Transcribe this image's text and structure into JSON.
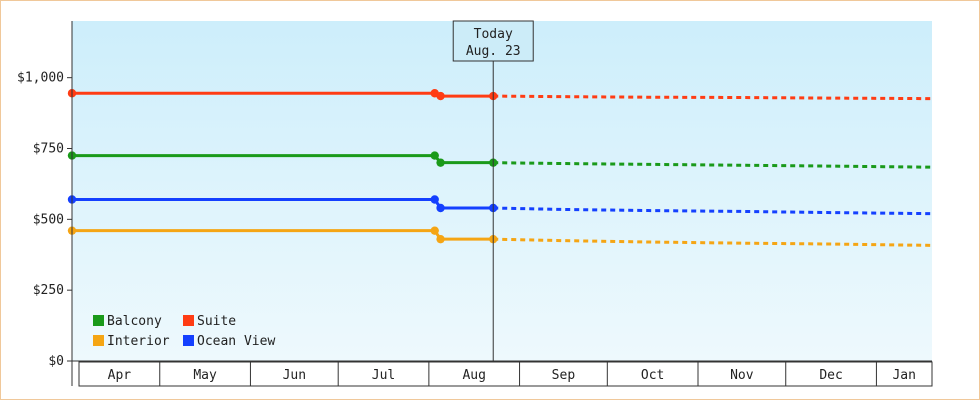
{
  "chart_data": {
    "type": "line",
    "title": "",
    "xlabel": "",
    "ylabel": "",
    "ylim": [
      0,
      1200
    ],
    "xlim": [
      "2023-04-01",
      "2024-01-20"
    ],
    "y_ticks": [
      0,
      250,
      500,
      750,
      1000
    ],
    "y_tick_labels": [
      "$0",
      "$250",
      "$500",
      "$750",
      "$1,000"
    ],
    "x_tick_labels": [
      "Apr",
      "May",
      "Jun",
      "Jul",
      "Aug",
      "Sep",
      "Oct",
      "Nov",
      "Dec",
      "Jan"
    ],
    "month_starts": [
      "2023-04-01",
      "2023-05-01",
      "2023-06-01",
      "2023-07-01",
      "2023-08-01",
      "2023-09-01",
      "2023-10-01",
      "2023-11-01",
      "2023-12-01",
      "2024-01-01"
    ],
    "grid": false,
    "background": "light-blue gradient",
    "today_marker": {
      "date": "2023-08-23",
      "line1": "Today",
      "line2": "Aug. 23"
    },
    "legend": {
      "placement": "bottom-left",
      "entries": [
        {
          "label": "Balcony",
          "color": "#1a9a1a"
        },
        {
          "label": "Suite",
          "color": "#ff3c14"
        },
        {
          "label": "Interior",
          "color": "#f5a514"
        },
        {
          "label": "Ocean View",
          "color": "#1440ff"
        }
      ]
    },
    "series": [
      {
        "name": "Suite",
        "color": "#ff3c14",
        "actual": [
          [
            "2023-04-01",
            945
          ],
          [
            "2023-08-03",
            945
          ],
          [
            "2023-08-05",
            935
          ],
          [
            "2023-08-23",
            935
          ]
        ],
        "projected": [
          [
            "2023-08-23",
            935
          ],
          [
            "2023-09-15",
            933
          ],
          [
            "2023-10-15",
            931
          ],
          [
            "2023-11-15",
            930
          ],
          [
            "2023-12-15",
            928
          ],
          [
            "2024-01-20",
            926
          ]
        ]
      },
      {
        "name": "Balcony",
        "color": "#1a9a1a",
        "actual": [
          [
            "2023-04-01",
            725
          ],
          [
            "2023-08-03",
            725
          ],
          [
            "2023-08-05",
            700
          ],
          [
            "2023-08-23",
            700
          ]
        ],
        "projected": [
          [
            "2023-08-23",
            700
          ],
          [
            "2023-09-15",
            697
          ],
          [
            "2023-10-15",
            694
          ],
          [
            "2023-11-15",
            691
          ],
          [
            "2023-12-15",
            688
          ],
          [
            "2024-01-20",
            684
          ]
        ]
      },
      {
        "name": "Ocean View",
        "color": "#1440ff",
        "actual": [
          [
            "2023-04-01",
            570
          ],
          [
            "2023-08-03",
            570
          ],
          [
            "2023-08-05",
            540
          ],
          [
            "2023-08-23",
            540
          ]
        ],
        "projected": [
          [
            "2023-08-23",
            540
          ],
          [
            "2023-09-15",
            535
          ],
          [
            "2023-10-15",
            531
          ],
          [
            "2023-11-15",
            528
          ],
          [
            "2023-12-15",
            524
          ],
          [
            "2024-01-20",
            520
          ]
        ]
      },
      {
        "name": "Interior",
        "color": "#f5a514",
        "actual": [
          [
            "2023-04-01",
            460
          ],
          [
            "2023-08-03",
            460
          ],
          [
            "2023-08-05",
            430
          ],
          [
            "2023-08-23",
            430
          ]
        ],
        "projected": [
          [
            "2023-08-23",
            430
          ],
          [
            "2023-09-15",
            425
          ],
          [
            "2023-10-15",
            420
          ],
          [
            "2023-11-15",
            416
          ],
          [
            "2023-12-15",
            413
          ],
          [
            "2024-01-20",
            408
          ]
        ]
      }
    ]
  }
}
